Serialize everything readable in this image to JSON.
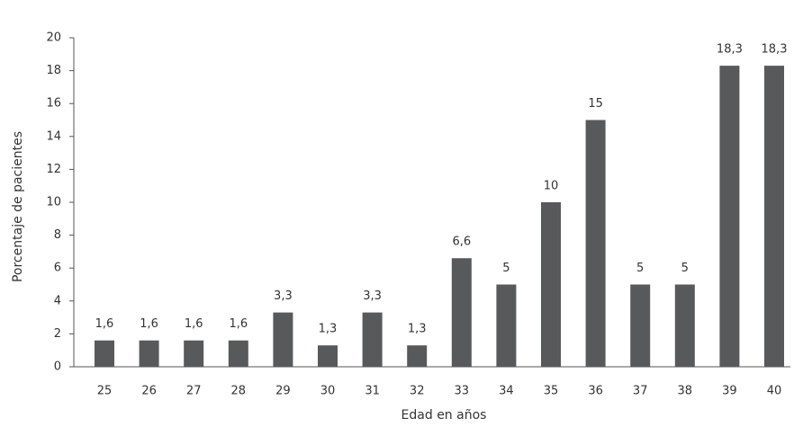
{
  "chart_data": {
    "type": "bar",
    "x_label": "Edad en años",
    "y_label": "Porcentaje de pacientes",
    "categories": [
      "25",
      "26",
      "27",
      "28",
      "29",
      "30",
      "31",
      "32",
      "33",
      "34",
      "35",
      "36",
      "37",
      "38",
      "39",
      "40"
    ],
    "values": [
      1.6,
      1.6,
      1.6,
      1.6,
      3.3,
      1.3,
      3.3,
      1.3,
      6.6,
      5,
      10,
      15,
      5,
      5,
      18.3,
      18.3
    ],
    "value_labels": [
      "1,6",
      "1,6",
      "1,6",
      "1,6",
      "3,3",
      "1,3",
      "3,3",
      "1,3",
      "6,6",
      "5",
      "10",
      "15",
      "5",
      "5",
      "18,3",
      "18,3"
    ],
    "color": "#58595b",
    "ylim": [
      0,
      20
    ],
    "yticks": [
      0,
      2,
      4,
      6,
      8,
      10,
      12,
      14,
      16,
      18,
      20
    ],
    "grid": false
  }
}
